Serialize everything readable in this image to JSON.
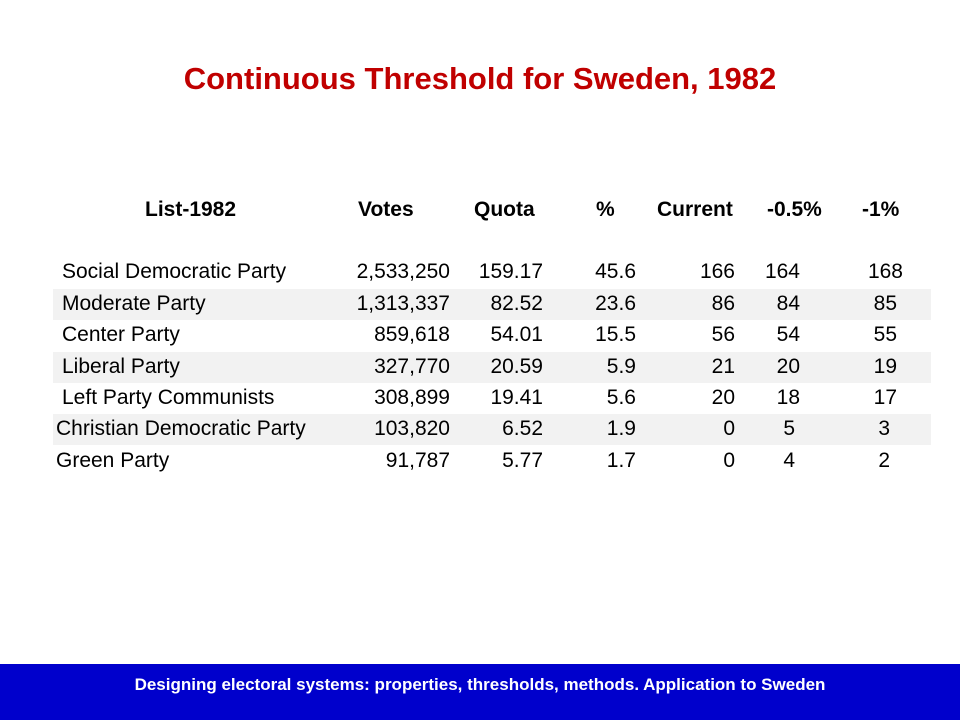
{
  "slide": {
    "title": "Continuous Threshold for Sweden, 1982",
    "footer": "Designing electoral systems: properties, thresholds, methods. Application to Sweden"
  },
  "table": {
    "headers": [
      "List-1982",
      "Votes",
      "Quota",
      "%",
      "Current",
      "-0.5%",
      "-1%"
    ],
    "rows": [
      {
        "party": "Social Democratic Party",
        "votes": "2,533,250",
        "quota": "159.17",
        "pct": "45.6",
        "current": "166",
        "minus_half": "164",
        "minus_one": "168"
      },
      {
        "party": "Moderate Party",
        "votes": "1,313,337",
        "quota": "82.52",
        "pct": "23.6",
        "current": "86",
        "minus_half": "84",
        "minus_one": "85"
      },
      {
        "party": "Center Party",
        "votes": "859,618",
        "quota": "54.01",
        "pct": "15.5",
        "current": "56",
        "minus_half": "54",
        "minus_one": "55"
      },
      {
        "party": "Liberal Party",
        "votes": "327,770",
        "quota": "20.59",
        "pct": "5.9",
        "current": "21",
        "minus_half": "20",
        "minus_one": "19"
      },
      {
        "party": "Left Party Communists",
        "votes": "308,899",
        "quota": "19.41",
        "pct": "5.6",
        "current": "20",
        "minus_half": "18",
        "minus_one": "17"
      },
      {
        "party": "Christian Democratic Party",
        "votes": "103,820",
        "quota": "6.52",
        "pct": "1.9",
        "current": "0",
        "minus_half": "5",
        "minus_one": "3"
      },
      {
        "party": "Green Party",
        "votes": "91,787",
        "quota": "5.77",
        "pct": "1.7",
        "current": "0",
        "minus_half": "4",
        "minus_one": "2"
      }
    ]
  }
}
